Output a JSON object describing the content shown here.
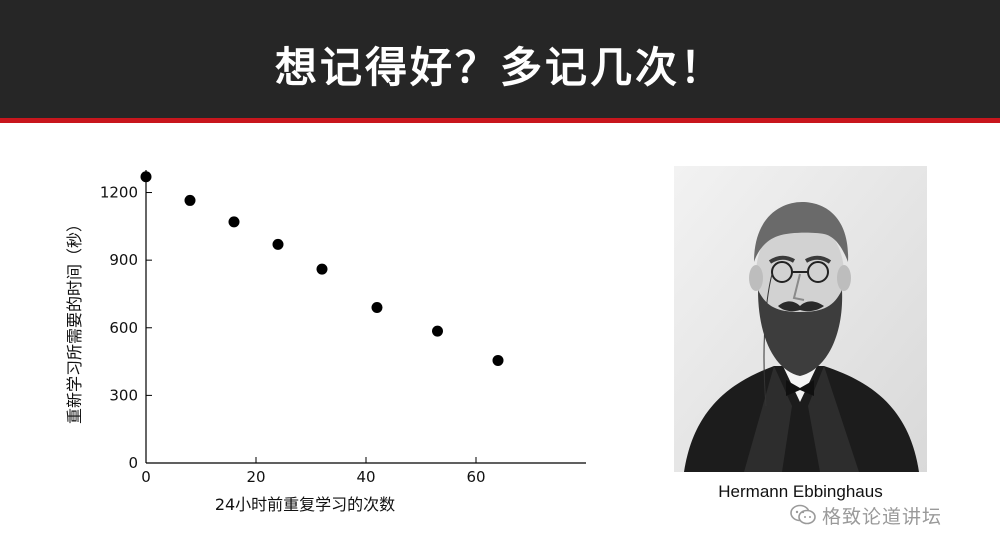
{
  "header": {
    "title": "想记得好？多记几次！",
    "accent_color": "#c8161d",
    "background_color": "#262626"
  },
  "chart_data": {
    "type": "scatter",
    "title": "",
    "xlabel": "24小时前重复学习的次数",
    "ylabel": "重新学习所需要的时间（秒）",
    "xlim": [
      0,
      80
    ],
    "ylim": [
      0,
      1300
    ],
    "x_ticks": [
      "0",
      "20",
      "40",
      "60"
    ],
    "y_ticks": [
      "0",
      "300",
      "600",
      "900",
      "1200"
    ],
    "x_tick_values": [
      0,
      20,
      40,
      60
    ],
    "y_tick_values": [
      0,
      300,
      600,
      900,
      1200
    ],
    "grid": false,
    "legend": "none",
    "marker_color": "#000000",
    "series": [
      {
        "x": [
          0,
          8,
          16,
          24,
          32,
          42,
          53,
          64
        ],
        "y": [
          1270,
          1165,
          1070,
          970,
          860,
          690,
          585,
          455
        ]
      }
    ]
  },
  "portrait": {
    "caption": "Hermann Ebbinghaus"
  },
  "watermark": {
    "text": "格致论道讲坛",
    "icon": "wechat-icon"
  }
}
